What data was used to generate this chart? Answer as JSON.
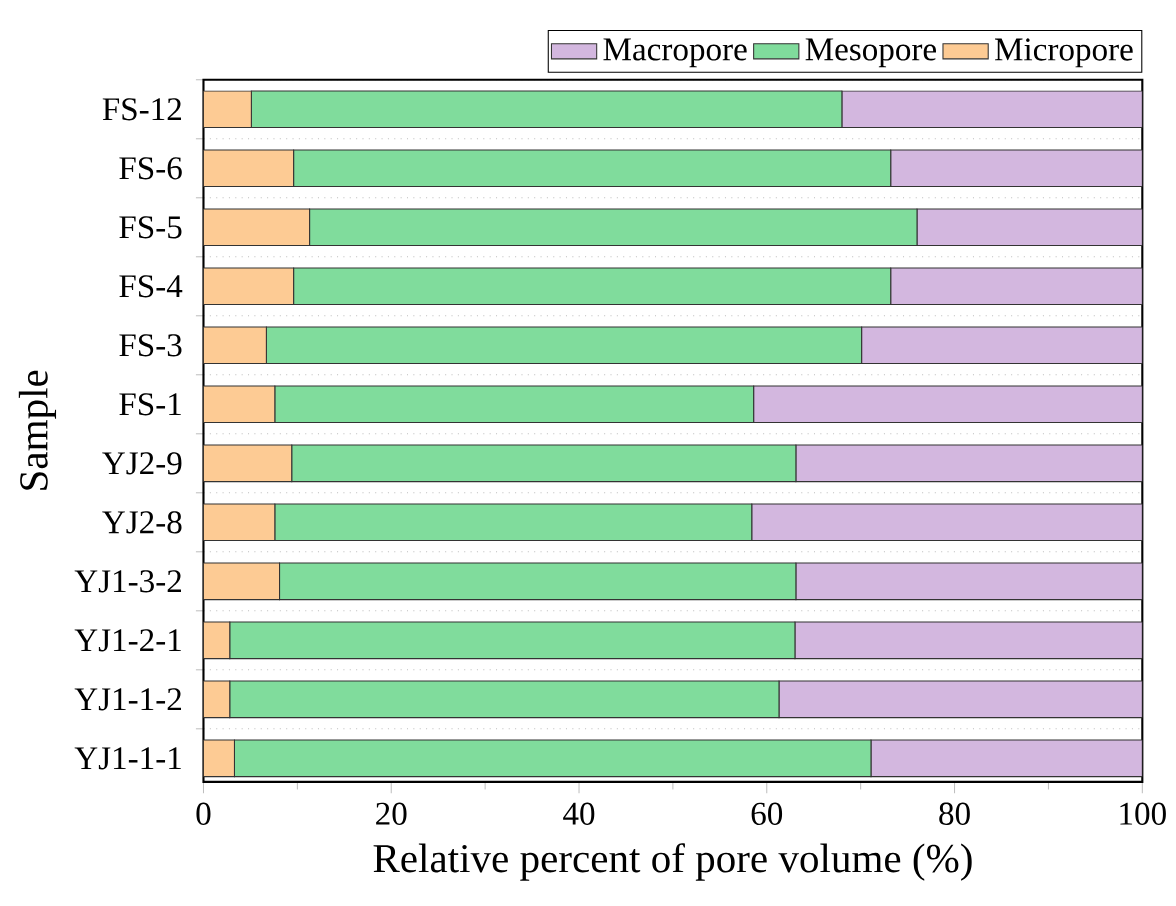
{
  "chart_data": {
    "type": "bar",
    "orientation": "horizontal",
    "stacked": true,
    "xlabel": "Relative percent of pore volume (%)",
    "ylabel": "Sample",
    "categories": [
      "FS-12",
      "FS-6",
      "FS-5",
      "FS-4",
      "FS-3",
      "FS-1",
      "YJ2-9",
      "YJ2-8",
      "YJ1-3-2",
      "YJ1-2-1",
      "YJ1-1-2",
      "YJ1-1-1"
    ],
    "series": [
      {
        "name": "Micropore",
        "color": "#fdcb94",
        "values": [
          5.1,
          9.6,
          11.3,
          9.6,
          6.7,
          7.6,
          9.4,
          7.6,
          8.1,
          2.8,
          2.8,
          3.3
        ]
      },
      {
        "name": "Mesopore",
        "color": "#80dc9c",
        "values": [
          62.9,
          63.6,
          64.7,
          63.6,
          63.4,
          51.0,
          53.7,
          50.8,
          55.0,
          60.2,
          58.5,
          67.8
        ]
      },
      {
        "name": "Macropore",
        "color": "#d3b7df",
        "values": [
          32.0,
          26.8,
          24.0,
          26.8,
          29.9,
          41.4,
          36.9,
          41.6,
          36.9,
          37.0,
          38.7,
          28.9
        ]
      }
    ],
    "xlim": [
      0,
      100
    ],
    "xticks": [
      0,
      20,
      40,
      60,
      80,
      100
    ],
    "grid": "y",
    "legend": "top right"
  }
}
